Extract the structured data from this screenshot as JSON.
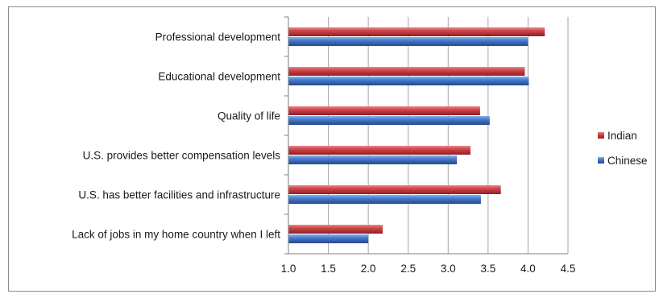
{
  "chart_data": {
    "type": "bar",
    "orientation": "horizontal",
    "categories": [
      "Professional development",
      "Educational development",
      "Quality of life",
      "U.S. provides better compensation levels",
      "U.S. has better facilities and infrastructure",
      "Lack of jobs in my home country when I left"
    ],
    "series": [
      {
        "name": "Indian",
        "color": "#c0383c",
        "values": [
          4.21,
          3.96,
          3.4,
          3.28,
          3.66,
          2.18
        ]
      },
      {
        "name": "Chinese",
        "color": "#3f6fc2",
        "values": [
          4.0,
          4.01,
          3.52,
          3.11,
          3.41,
          2.0
        ]
      }
    ],
    "xlim": [
      1.0,
      4.5
    ],
    "xticks": [
      "1.0",
      "1.5",
      "2.0",
      "2.5",
      "3.0",
      "3.5",
      "4.0",
      "4.5"
    ],
    "grid": "vertical",
    "legend_position": "right",
    "title": "",
    "xlabel": "",
    "ylabel": ""
  }
}
